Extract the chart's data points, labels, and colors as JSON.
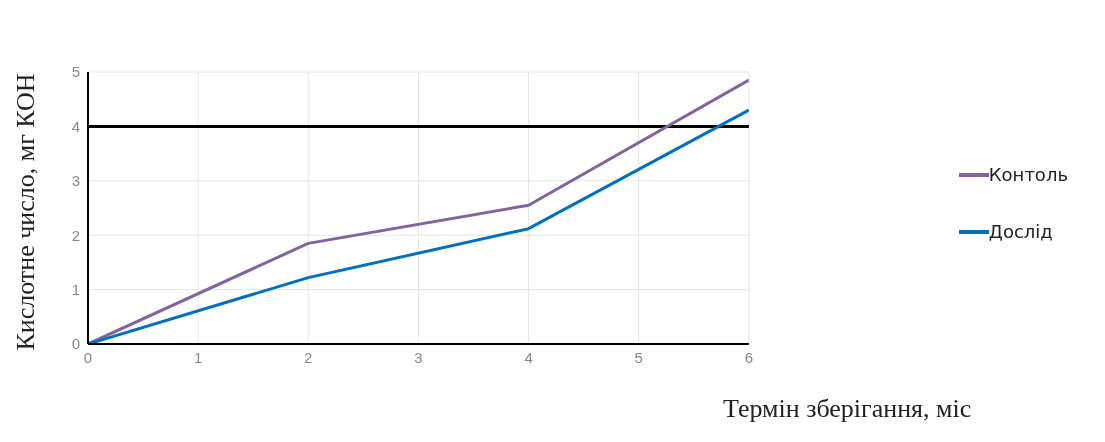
{
  "chart_data": {
    "type": "line",
    "xlabel": "Термін зберігання, міс",
    "ylabel": "Кислотне число, мг КОН",
    "x": [
      0,
      2,
      4,
      6
    ],
    "series": [
      {
        "name": "Контоль",
        "color": "#8064a2",
        "values": [
          0,
          1.85,
          2.55,
          4.85
        ]
      },
      {
        "name": "Дослід",
        "color": "#0070c0",
        "values": [
          0,
          1.22,
          2.12,
          4.3
        ]
      }
    ],
    "xlim": [
      0,
      6
    ],
    "xticks": [
      0,
      1,
      2,
      3,
      4,
      5,
      6
    ],
    "ylim": [
      0,
      5
    ],
    "yticks": [
      0,
      1,
      2,
      3,
      4,
      5
    ],
    "ref_lines": [
      {
        "axis": "y",
        "value": 4,
        "color": "#000000"
      }
    ],
    "grid": true,
    "legend": "right",
    "marker": "none",
    "line_style": "solid"
  }
}
